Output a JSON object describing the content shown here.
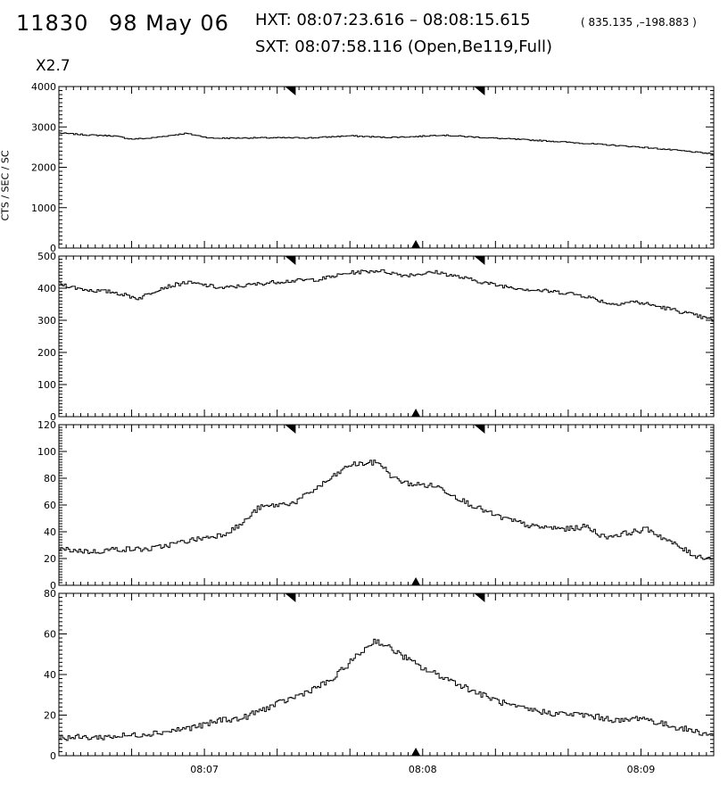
{
  "header": {
    "event_id": "11830",
    "date": "98 May 06",
    "hxt": "HXT: 08:07:23.616 – 08:08:15.615",
    "coords": "( 835.135 ,–198.883 )",
    "sxt": "SXT: 08:07:58.116 (Open,Be119,Full)",
    "multiplier": "X2.7"
  },
  "chart_data": {
    "type": "line",
    "style": "histogram-step",
    "color": "#000000",
    "ylabel": "CTS / SEC / SC",
    "x_range_seconds": [
      0,
      180
    ],
    "x_ticks": [
      {
        "t": 40,
        "label": "08:07"
      },
      {
        "t": 100,
        "label": "08:08"
      },
      {
        "t": 160,
        "label": "08:09"
      }
    ],
    "markers": {
      "interval_start": "08:07:23.616",
      "interval_end": "08:08:15.615",
      "sxt_time": "08:07:58.116"
    },
    "panels": [
      {
        "ylim": [
          0,
          4000
        ],
        "yticks": [
          "0",
          "1000",
          "2000",
          "3000",
          "4000"
        ],
        "ytick_values": [
          0,
          1000,
          2000,
          3000,
          4000
        ],
        "anchors": [
          [
            0,
            2850
          ],
          [
            8,
            2800
          ],
          [
            15,
            2780
          ],
          [
            20,
            2700
          ],
          [
            25,
            2720
          ],
          [
            35,
            2840
          ],
          [
            42,
            2720
          ],
          [
            55,
            2730
          ],
          [
            70,
            2730
          ],
          [
            80,
            2780
          ],
          [
            90,
            2740
          ],
          [
            98,
            2760
          ],
          [
            105,
            2800
          ],
          [
            112,
            2760
          ],
          [
            120,
            2720
          ],
          [
            135,
            2650
          ],
          [
            150,
            2560
          ],
          [
            160,
            2500
          ],
          [
            170,
            2420
          ],
          [
            180,
            2330
          ]
        ],
        "noise": 15
      },
      {
        "ylim": [
          0,
          500
        ],
        "yticks": [
          "0",
          "100",
          "200",
          "300",
          "400",
          "500"
        ],
        "ytick_values": [
          0,
          100,
          200,
          300,
          400,
          500
        ],
        "anchors": [
          [
            0,
            415
          ],
          [
            5,
            400
          ],
          [
            10,
            392
          ],
          [
            15,
            388
          ],
          [
            22,
            368
          ],
          [
            28,
            400
          ],
          [
            35,
            418
          ],
          [
            40,
            410
          ],
          [
            45,
            400
          ],
          [
            60,
            420
          ],
          [
            72,
            428
          ],
          [
            80,
            448
          ],
          [
            88,
            455
          ],
          [
            95,
            440
          ],
          [
            104,
            450
          ],
          [
            112,
            430
          ],
          [
            120,
            410
          ],
          [
            130,
            395
          ],
          [
            140,
            385
          ],
          [
            145,
            375
          ],
          [
            152,
            350
          ],
          [
            158,
            358
          ],
          [
            162,
            350
          ],
          [
            170,
            330
          ],
          [
            180,
            300
          ]
        ],
        "noise": 6
      },
      {
        "ylim": [
          0,
          120
        ],
        "yticks": [
          "0",
          "20",
          "40",
          "60",
          "80",
          "100",
          "120"
        ],
        "ytick_values": [
          0,
          20,
          40,
          60,
          80,
          100,
          120
        ],
        "anchors": [
          [
            0,
            27
          ],
          [
            10,
            25
          ],
          [
            15,
            27
          ],
          [
            25,
            27
          ],
          [
            35,
            33
          ],
          [
            45,
            38
          ],
          [
            50,
            45
          ],
          [
            55,
            58
          ],
          [
            65,
            62
          ],
          [
            75,
            80
          ],
          [
            80,
            90
          ],
          [
            88,
            92
          ],
          [
            92,
            80
          ],
          [
            96,
            76
          ],
          [
            104,
            74
          ],
          [
            112,
            62
          ],
          [
            120,
            52
          ],
          [
            130,
            44
          ],
          [
            140,
            42
          ],
          [
            145,
            44
          ],
          [
            150,
            36
          ],
          [
            158,
            40
          ],
          [
            162,
            42
          ],
          [
            167,
            34
          ],
          [
            175,
            22
          ],
          [
            180,
            20
          ]
        ],
        "noise": 2
      },
      {
        "ylim": [
          0,
          80
        ],
        "yticks": [
          "0",
          "20",
          "40",
          "60",
          "80"
        ],
        "ytick_values": [
          0,
          20,
          40,
          60,
          80
        ],
        "anchors": [
          [
            0,
            9
          ],
          [
            10,
            9
          ],
          [
            20,
            10
          ],
          [
            30,
            12
          ],
          [
            40,
            15
          ],
          [
            45,
            18
          ],
          [
            50,
            18
          ],
          [
            55,
            22
          ],
          [
            65,
            29
          ],
          [
            75,
            37
          ],
          [
            80,
            46
          ],
          [
            87,
            57
          ],
          [
            92,
            52
          ],
          [
            100,
            43
          ],
          [
            108,
            37
          ],
          [
            115,
            31
          ],
          [
            125,
            24
          ],
          [
            135,
            21
          ],
          [
            145,
            20
          ],
          [
            155,
            17
          ],
          [
            160,
            19
          ],
          [
            165,
            16
          ],
          [
            175,
            12
          ],
          [
            180,
            10
          ]
        ],
        "noise": 1.5
      }
    ]
  }
}
